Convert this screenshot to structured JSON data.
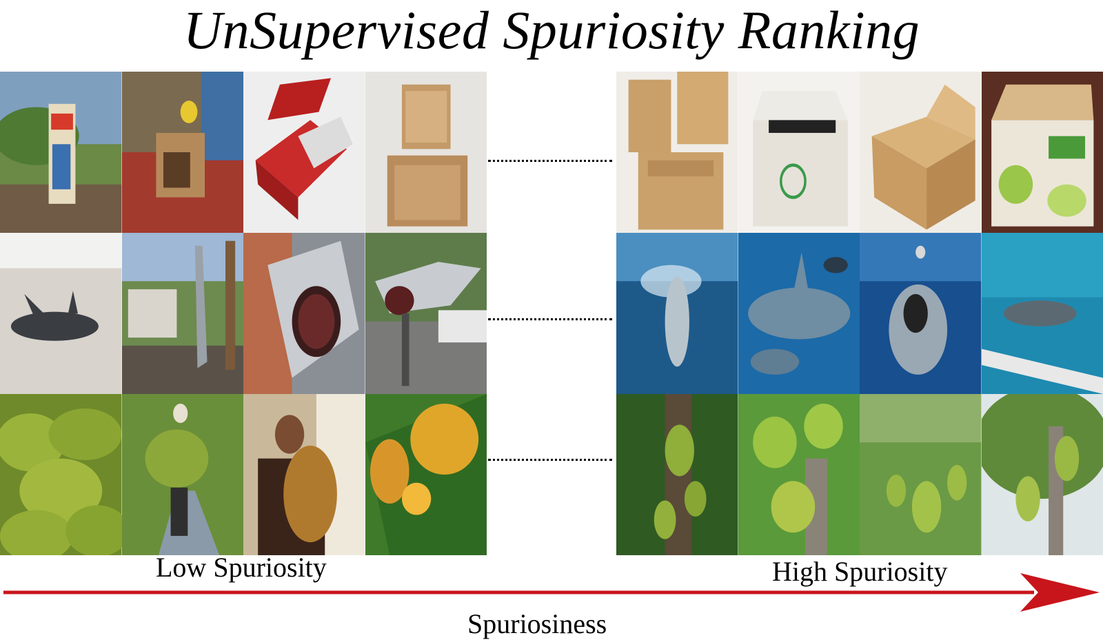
{
  "title": "UnSupervised Spuriosity Ranking",
  "labels": {
    "low": "Low Spuriosity",
    "high": "High Spuriosity",
    "axis": "Spuriosiness"
  },
  "colors": {
    "arrow": "#c8151b"
  },
  "rows": [
    {
      "class_name": "box"
    },
    {
      "class_name": "shark"
    },
    {
      "class_name": "jackfruit"
    }
  ]
}
